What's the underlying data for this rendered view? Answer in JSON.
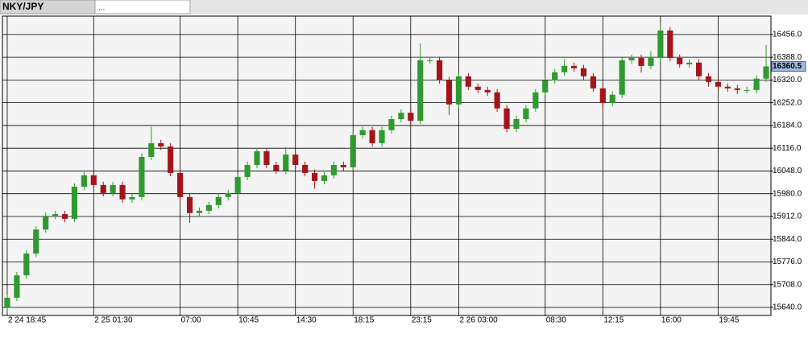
{
  "tabs": [
    "NKY/JPY",
    "..."
  ],
  "chart_data": {
    "type": "candlestick",
    "categories": [
      "2 24 18:45",
      null,
      null,
      null,
      null,
      null,
      null,
      null,
      null,
      "2 25 01:30",
      null,
      null,
      null,
      null,
      null,
      null,
      null,
      null,
      "07:00",
      null,
      null,
      null,
      null,
      null,
      "10:45",
      null,
      null,
      null,
      null,
      null,
      "14:30",
      null,
      null,
      null,
      null,
      null,
      "18:15",
      null,
      null,
      null,
      null,
      null,
      "23:15",
      null,
      null,
      null,
      null,
      "2 26 03:00",
      null,
      null,
      null,
      null,
      null,
      null,
      null,
      null,
      "08:30",
      null,
      null,
      null,
      null,
      null,
      "12:15",
      null,
      null,
      null,
      null,
      null,
      "16:00",
      null,
      null,
      null,
      null,
      null,
      "19:45",
      null,
      null,
      null,
      null,
      null
    ],
    "open": [
      15640,
      15669,
      15736,
      15801,
      15873,
      15914,
      15919,
      15905,
      16001,
      16035,
      16006,
      15982,
      16006,
      15963,
      15970,
      16090,
      16131,
      16121,
      16042,
      15970,
      15922,
      15929,
      15946,
      15970,
      15982,
      16030,
      16066,
      16107,
      16066,
      16049,
      16097,
      16066,
      16042,
      16018,
      16035,
      16066,
      16059,
      16155,
      16170,
      16131,
      16170,
      16203,
      16222,
      16198,
      16379,
      16379,
      16319,
      16247,
      16331,
      16300,
      16290,
      16283,
      16235,
      16174,
      16203,
      16235,
      16283,
      16319,
      16343,
      16362,
      16355,
      16331,
      16295,
      16251,
      16276,
      16379,
      16386,
      16362,
      16386,
      16468,
      16386,
      16367,
      16372,
      16331,
      16314,
      16300,
      16295,
      16290,
      16290,
      16324
    ],
    "high": [
      15679,
      15746,
      15811,
      15883,
      15924,
      15929,
      15929,
      16011,
      16045,
      16045,
      16016,
      16016,
      16016,
      15980,
      16100,
      16180,
      16141,
      16131,
      16052,
      15980,
      15939,
      15956,
      15980,
      15992,
      16040,
      16076,
      16117,
      16117,
      16076,
      16120,
      16107,
      16076,
      16052,
      16045,
      16076,
      16076,
      16165,
      16180,
      16180,
      16180,
      16213,
      16232,
      16232,
      16430,
      16389,
      16389,
      16329,
      16341,
      16341,
      16310,
      16300,
      16293,
      16245,
      16213,
      16245,
      16293,
      16329,
      16353,
      16382,
      16372,
      16365,
      16341,
      16305,
      16286,
      16389,
      16396,
      16396,
      16406,
      16490,
      16478,
      16396,
      16382,
      16382,
      16341,
      16324,
      16310,
      16305,
      16300,
      16334,
      16425
    ],
    "low": [
      15630,
      15659,
      15726,
      15791,
      15863,
      15904,
      15895,
      15895,
      15991,
      15996,
      15972,
      15972,
      15953,
      15953,
      15960,
      16080,
      16111,
      16032,
      15960,
      15893,
      15912,
      15919,
      15936,
      15960,
      15972,
      16020,
      16056,
      16056,
      16039,
      16039,
      16056,
      16032,
      15995,
      16008,
      16025,
      16049,
      16049,
      16145,
      16121,
      16121,
      16160,
      16193,
      16188,
      16188,
      16369,
      16309,
      16215,
      16237,
      16290,
      16280,
      16273,
      16225,
      16164,
      16164,
      16193,
      16225,
      16273,
      16309,
      16333,
      16345,
      16321,
      16285,
      16236,
      16241,
      16266,
      16369,
      16342,
      16352,
      16376,
      16376,
      16357,
      16357,
      16321,
      16300,
      16290,
      16285,
      16278,
      16280,
      16280,
      16314
    ],
    "close": [
      15669,
      15736,
      15801,
      15873,
      15914,
      15919,
      15905,
      16001,
      16035,
      16006,
      15982,
      16006,
      15963,
      15970,
      16090,
      16131,
      16121,
      16042,
      15970,
      15922,
      15929,
      15946,
      15970,
      15982,
      16030,
      16066,
      16107,
      16066,
      16049,
      16097,
      16066,
      16042,
      16018,
      16035,
      16066,
      16059,
      16155,
      16170,
      16131,
      16170,
      16203,
      16222,
      16198,
      16379,
      16379,
      16319,
      16247,
      16331,
      16300,
      16290,
      16283,
      16235,
      16174,
      16203,
      16235,
      16283,
      16319,
      16343,
      16362,
      16355,
      16331,
      16295,
      16251,
      16276,
      16379,
      16386,
      16362,
      16386,
      16468,
      16386,
      16367,
      16372,
      16331,
      16314,
      16300,
      16295,
      16290,
      16290,
      16324,
      16360.5
    ],
    "up_color": "#2f9a2f",
    "down_color": "#a3151b",
    "ylim": [
      15616,
      16511
    ],
    "yticks": [
      {
        "value": 15640,
        "label": "15640.0"
      },
      {
        "value": 15708,
        "label": "15708.0"
      },
      {
        "value": 15776,
        "label": "15776.0"
      },
      {
        "value": 15844,
        "label": "15844.0"
      },
      {
        "value": 15912,
        "label": "15912.0"
      },
      {
        "value": 15980,
        "label": "15980.0"
      },
      {
        "value": 16048,
        "label": "16048.0"
      },
      {
        "value": 16116,
        "label": "16116.0"
      },
      {
        "value": 16184,
        "label": "16184.0"
      },
      {
        "value": 16252,
        "label": "16252.0"
      },
      {
        "value": 16320,
        "label": "16320.0"
      },
      {
        "value": 16388,
        "label": "16388.0"
      },
      {
        "value": 16456,
        "label": "16456.0"
      }
    ],
    "grid": true
  }
}
